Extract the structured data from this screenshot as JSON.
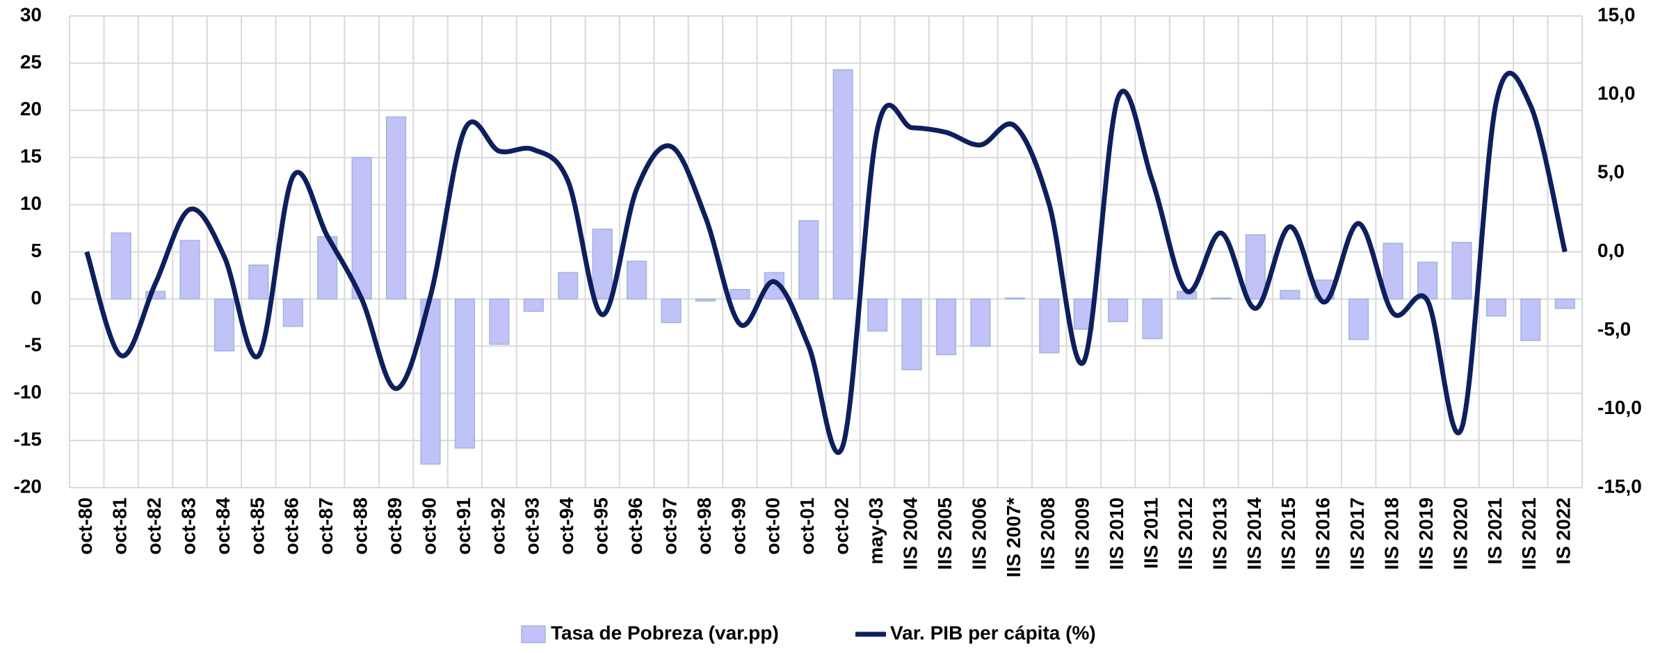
{
  "chart_data": {
    "type": "bar-line",
    "categories": [
      "oct-80",
      "oct-81",
      "oct-82",
      "oct-83",
      "oct-84",
      "oct-85",
      "oct-86",
      "oct-87",
      "oct-88",
      "oct-89",
      "oct-90",
      "oct-91",
      "oct-92",
      "oct-93",
      "oct-94",
      "oct-95",
      "oct-96",
      "oct-97",
      "oct-98",
      "oct-99",
      "oct-00",
      "oct-01",
      "oct-02",
      "may-03",
      "IIS 2004",
      "IIS 2005",
      "IIS 2006",
      "IIS 2007*",
      "IIS 2008",
      "IIS 2009",
      "IIS 2010",
      "IIS 2011",
      "IIS 2012",
      "IIS 2013",
      "IIS 2014",
      "IIS 2015",
      "IIS 2016",
      "IIS 2017",
      "IIS 2018",
      "IIS 2019",
      "IIS 2020",
      "IS 2021",
      "IIS 2021",
      "IS 2022"
    ],
    "series": [
      {
        "name": "Tasa de Pobreza (var.pp)",
        "type": "bar",
        "color": "#c0c2f8",
        "values": [
          null,
          7.0,
          0.8,
          6.2,
          -5.5,
          3.6,
          -2.9,
          6.6,
          15.0,
          19.3,
          -17.5,
          -15.8,
          -4.8,
          -1.3,
          2.8,
          7.4,
          4.0,
          -2.5,
          -0.2,
          1.0,
          2.8,
          8.3,
          24.3,
          -3.4,
          -7.5,
          -5.9,
          -5.0,
          0.1,
          -5.7,
          -3.2,
          -2.4,
          -4.2,
          0.8,
          0.1,
          6.8,
          0.9,
          2.0,
          -4.3,
          5.9,
          3.9,
          6.0,
          -1.8,
          -4.4,
          -1.0
        ]
      },
      {
        "name": "Var. PIB per cápita (%)",
        "type": "line",
        "axis": "y2",
        "color": "#0d1f5c",
        "values": [
          0.0,
          -6.6,
          -2.0,
          2.7,
          -0.3,
          -6.6,
          4.8,
          1.0,
          -3.0,
          -8.7,
          -2.8,
          7.8,
          6.4,
          6.5,
          4.5,
          -4.0,
          4.0,
          6.7,
          2.2,
          -4.6,
          -1.9,
          -6.0,
          -12.3,
          7.8,
          7.9,
          7.6,
          6.8,
          8.0,
          3.0,
          -7.0,
          9.8,
          4.5,
          -2.5,
          1.2,
          -3.6,
          1.6,
          -3.2,
          1.8,
          -3.9,
          -3.1,
          -11.2,
          9.5,
          9.3,
          0.0
        ]
      }
    ],
    "ylim": [
      -20,
      30
    ],
    "yticks": [
      -20,
      -15,
      -10,
      -5,
      0,
      5,
      10,
      15,
      20,
      25,
      30
    ],
    "y2lim": [
      -15,
      15
    ],
    "y2ticks": [
      {
        "value": -15,
        "label": "-15,0"
      },
      {
        "value": -10,
        "label": "-10,0"
      },
      {
        "value": -5,
        "label": "-5,0"
      },
      {
        "value": 0,
        "label": "0,0"
      },
      {
        "value": 5,
        "label": "5,0"
      },
      {
        "value": 10,
        "label": "10,0"
      },
      {
        "value": 15,
        "label": "15,0"
      }
    ],
    "grid": true,
    "legend": "bottom"
  }
}
